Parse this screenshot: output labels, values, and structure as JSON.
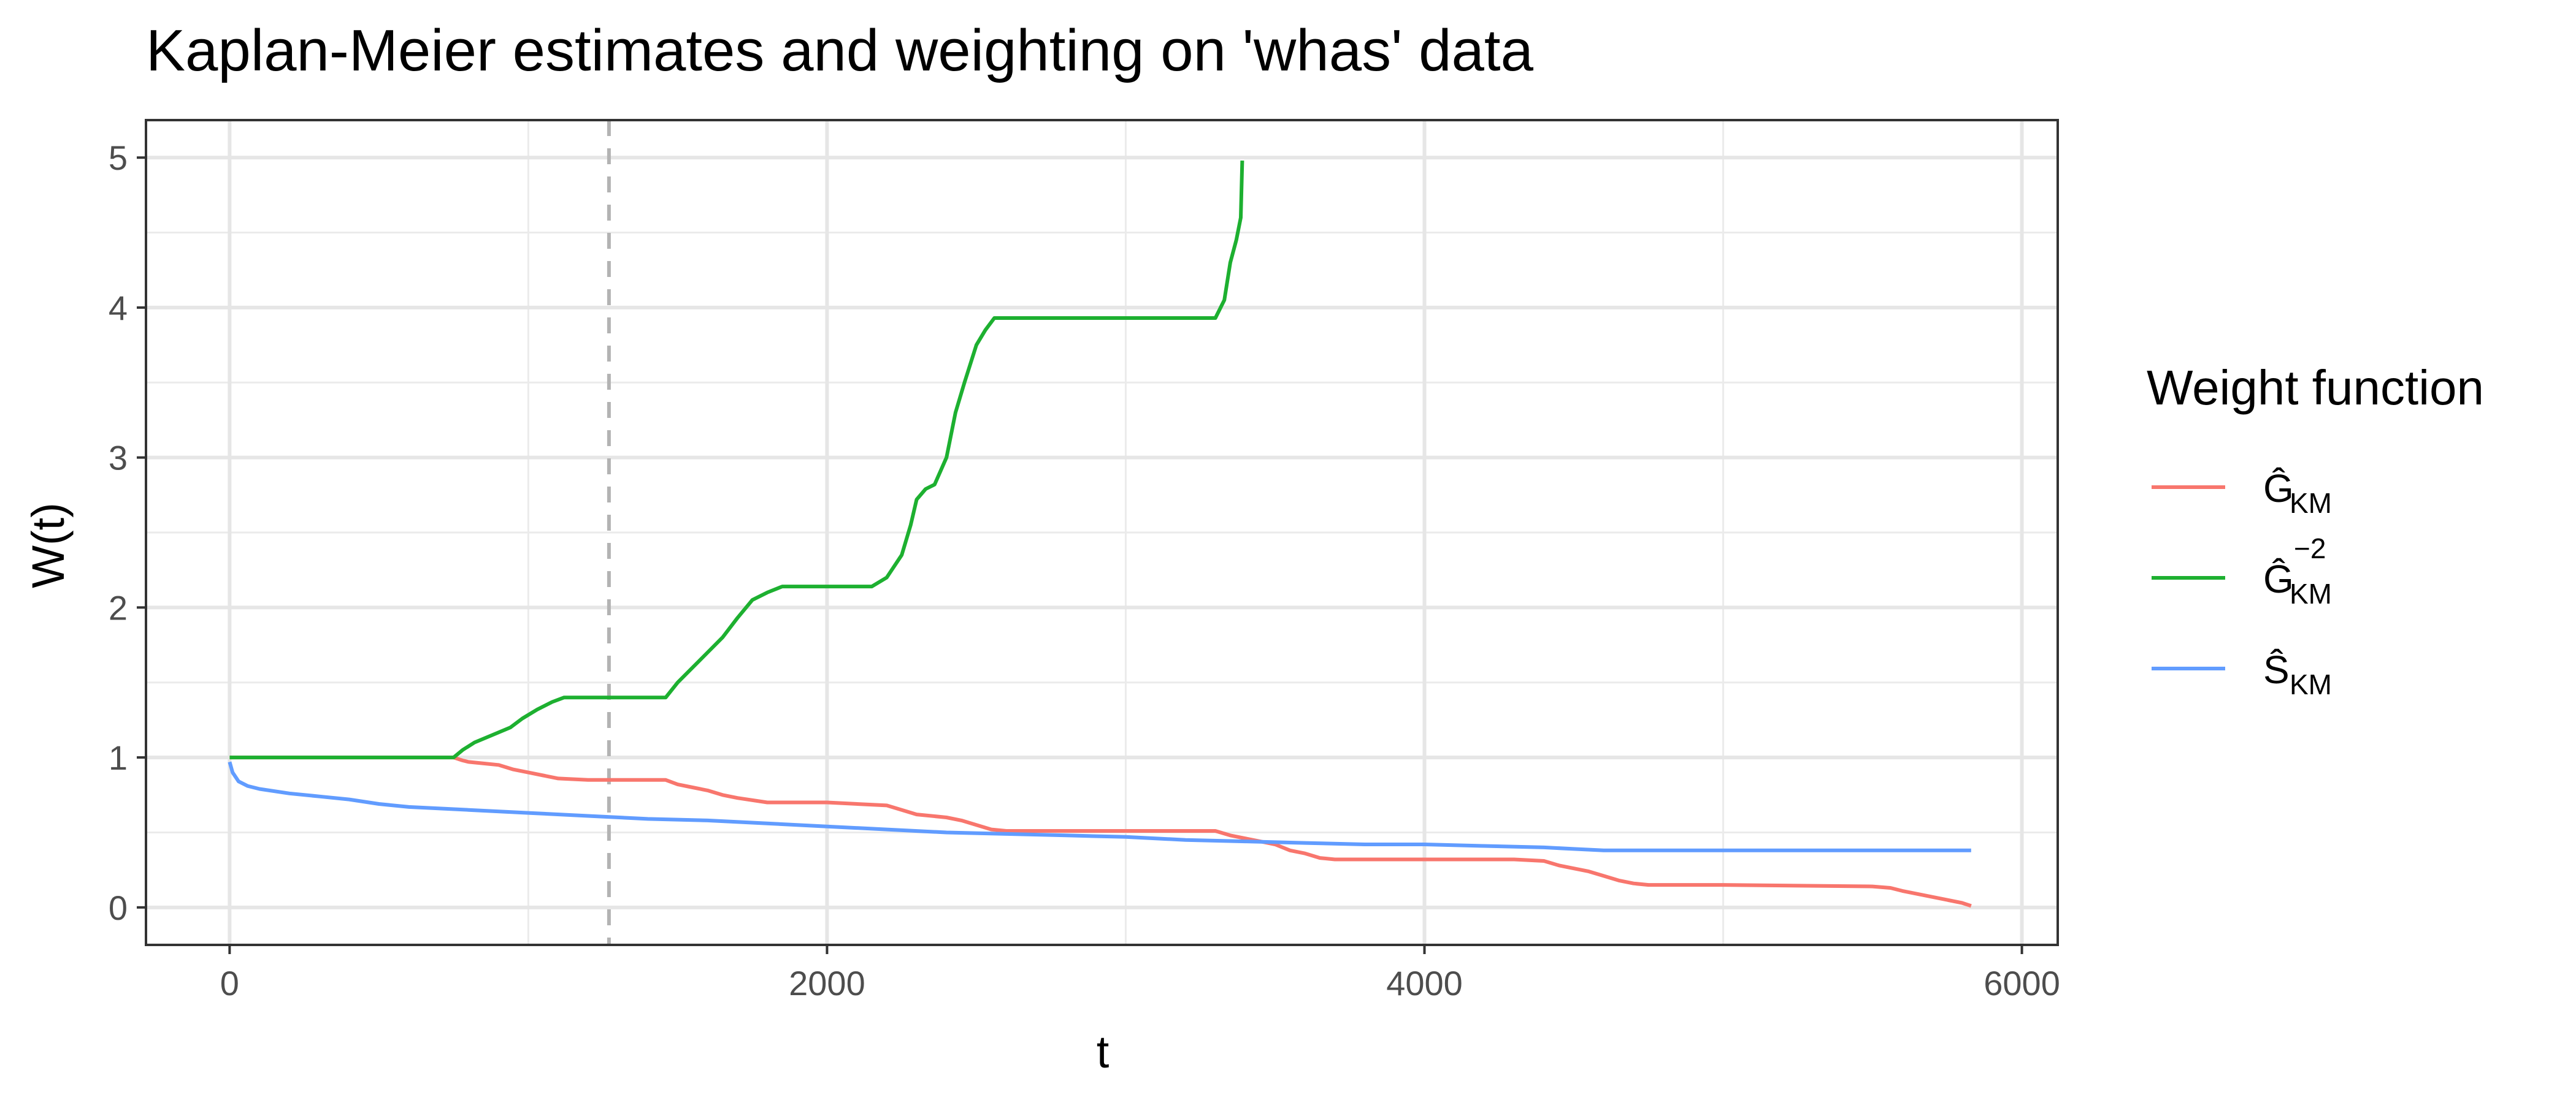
{
  "chart_data": {
    "type": "line",
    "title": "Kaplan-Meier estimates and weighting on 'whas' data",
    "xlabel": "t",
    "ylabel": "W(t)",
    "xlim": [
      -280,
      6120
    ],
    "ylim": [
      -0.25,
      5.25
    ],
    "xticks": [
      0,
      2000,
      4000,
      6000
    ],
    "yticks": [
      0,
      1,
      2,
      3,
      4,
      5
    ],
    "grid": true,
    "legend_position": "right",
    "legend_title": "Weight function",
    "vline": {
      "x": 1270,
      "style": "dashed",
      "color": "#b3b3b3"
    },
    "series": [
      {
        "key": "g",
        "name": "Ĝ_KM",
        "legend": {
          "base": "Ĝ",
          "sub": "KM",
          "sup": ""
        },
        "color": "#F8766D",
        "x": [
          0,
          750,
          780,
          800,
          900,
          950,
          1000,
          1050,
          1100,
          1200,
          1300,
          1460,
          1500,
          1550,
          1600,
          1650,
          1700,
          1800,
          2000,
          2200,
          2250,
          2300,
          2400,
          2450,
          2500,
          2550,
          2600,
          3000,
          3300,
          3350,
          3400,
          3450,
          3500,
          3550,
          3600,
          3650,
          3700,
          4000,
          4300,
          4400,
          4450,
          4500,
          4550,
          4600,
          4650,
          4700,
          4750,
          5000,
          5500,
          5560,
          5600,
          5650,
          5700,
          5750,
          5800,
          5830
        ],
        "y": [
          1.0,
          1.0,
          0.98,
          0.97,
          0.95,
          0.92,
          0.9,
          0.88,
          0.86,
          0.85,
          0.85,
          0.85,
          0.82,
          0.8,
          0.78,
          0.75,
          0.73,
          0.7,
          0.7,
          0.68,
          0.65,
          0.62,
          0.6,
          0.58,
          0.55,
          0.52,
          0.51,
          0.51,
          0.51,
          0.48,
          0.46,
          0.44,
          0.42,
          0.38,
          0.36,
          0.33,
          0.32,
          0.32,
          0.32,
          0.31,
          0.28,
          0.26,
          0.24,
          0.21,
          0.18,
          0.16,
          0.15,
          0.15,
          0.14,
          0.13,
          0.11,
          0.09,
          0.07,
          0.05,
          0.03,
          0.01
        ]
      },
      {
        "key": "g2",
        "name": "Ĝ_KM^−2",
        "legend": {
          "base": "Ĝ",
          "sub": "KM",
          "sup": "−2"
        },
        "color": "#1DB030",
        "x": [
          0,
          750,
          780,
          820,
          880,
          940,
          980,
          1030,
          1080,
          1120,
          1200,
          1300,
          1460,
          1500,
          1550,
          1600,
          1650,
          1700,
          1750,
          1800,
          1850,
          2000,
          2150,
          2200,
          2250,
          2280,
          2300,
          2330,
          2360,
          2400,
          2430,
          2460,
          2500,
          2530,
          2560,
          3000,
          3300,
          3330,
          3350,
          3370,
          3385,
          3390
        ],
        "y": [
          1.0,
          1.0,
          1.05,
          1.1,
          1.15,
          1.2,
          1.26,
          1.32,
          1.37,
          1.4,
          1.4,
          1.4,
          1.4,
          1.5,
          1.6,
          1.7,
          1.8,
          1.93,
          2.05,
          2.1,
          2.14,
          2.14,
          2.14,
          2.2,
          2.35,
          2.55,
          2.72,
          2.79,
          2.82,
          3.0,
          3.3,
          3.5,
          3.75,
          3.85,
          3.93,
          3.93,
          3.93,
          4.05,
          4.3,
          4.45,
          4.6,
          4.98
        ]
      },
      {
        "key": "s",
        "name": "Ŝ_KM",
        "legend": {
          "base": "Ŝ",
          "sub": "KM",
          "sup": ""
        },
        "color": "#619CFF",
        "x": [
          0,
          10,
          30,
          60,
          100,
          200,
          300,
          400,
          500,
          600,
          800,
          1000,
          1200,
          1400,
          1600,
          1800,
          2000,
          2200,
          2400,
          2600,
          2800,
          3000,
          3200,
          3400,
          3600,
          3800,
          4000,
          4200,
          4400,
          4500,
          4600,
          5000,
          5500,
          5830
        ],
        "y": [
          0.97,
          0.9,
          0.84,
          0.81,
          0.79,
          0.76,
          0.74,
          0.72,
          0.69,
          0.67,
          0.65,
          0.63,
          0.61,
          0.59,
          0.58,
          0.56,
          0.54,
          0.52,
          0.5,
          0.49,
          0.48,
          0.47,
          0.45,
          0.44,
          0.43,
          0.42,
          0.42,
          0.41,
          0.4,
          0.39,
          0.38,
          0.38,
          0.38,
          0.38
        ]
      }
    ]
  }
}
